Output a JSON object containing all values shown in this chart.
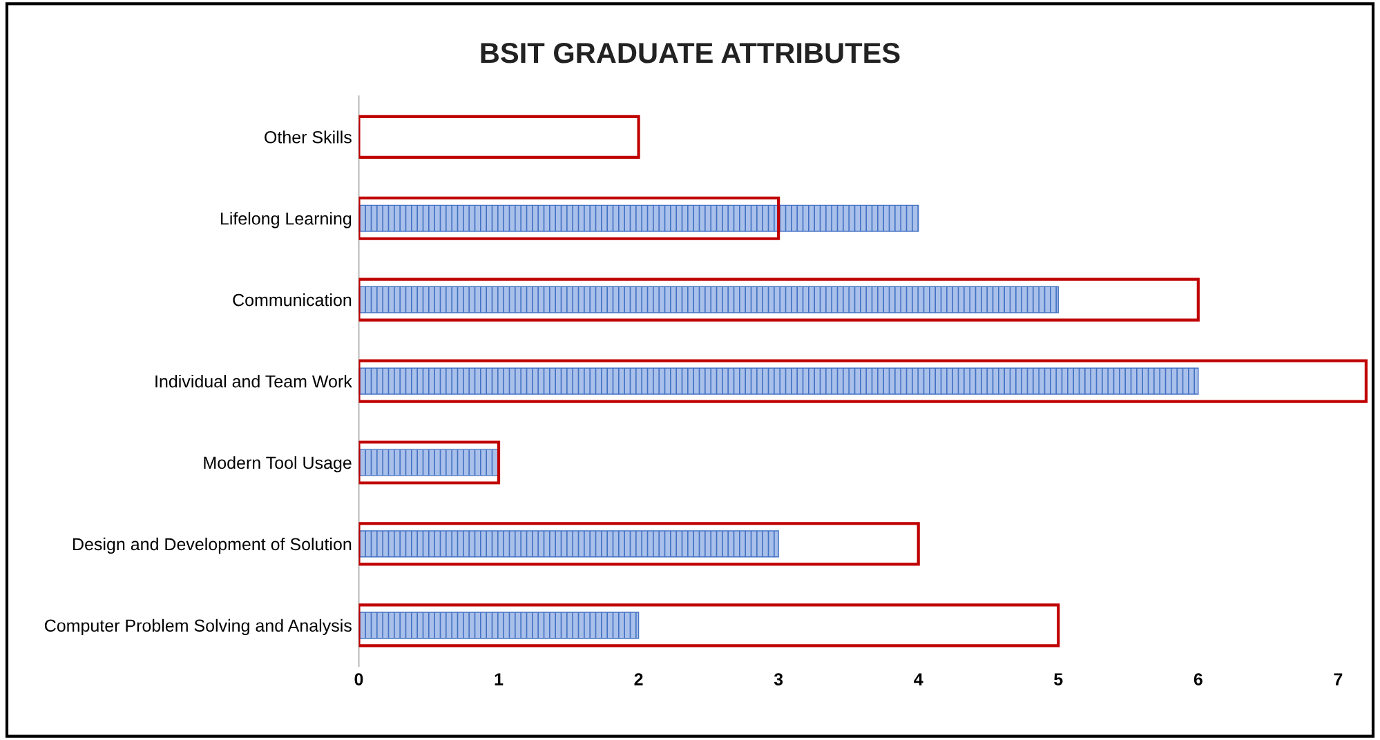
{
  "chart_data": {
    "type": "bar",
    "orientation": "horizontal",
    "title": "BSIT GRADUATE ATTRIBUTES",
    "categories": [
      "Other Skills",
      "Lifelong Learning",
      "Communication",
      "Individual and Team Work",
      "Modern Tool Usage",
      "Design and Development of Solution",
      "Computer Problem Solving and Analysis"
    ],
    "series": [
      {
        "color": "#4472c4",
        "values": [
          0,
          4,
          5,
          6,
          1,
          3,
          2
        ]
      },
      {
        "color": "#c00000",
        "values": [
          2,
          3,
          6,
          7.2,
          1,
          4,
          5
        ]
      }
    ],
    "xlim": [
      0,
      7.25
    ],
    "xticks": [
      0,
      1,
      2,
      3,
      4,
      5,
      6,
      7
    ],
    "grid": false,
    "legend": false
  }
}
